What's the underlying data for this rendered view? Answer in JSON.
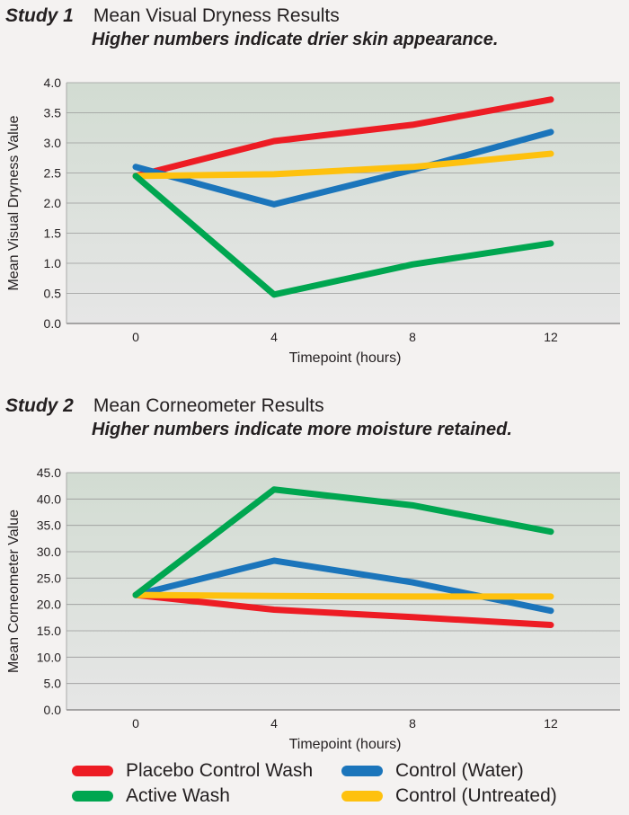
{
  "study1": {
    "label": "Study 1",
    "title": "Mean Visual Dryness Results",
    "subtitle": "Higher numbers indicate drier skin appearance."
  },
  "study2": {
    "label": "Study 2",
    "title": "Mean Corneometer Results",
    "subtitle": "Higher numbers indicate more moisture retained."
  },
  "colors": {
    "placebo": "#ed1c24",
    "active": "#00a650",
    "water": "#1b75bb",
    "untreated": "#fec10e",
    "plot_bg_top": "#d2dcd2",
    "plot_bg_bottom": "#e6e6e6"
  },
  "legend": [
    {
      "label": "Placebo Control Wash",
      "color_key": "placebo"
    },
    {
      "label": "Control (Water)",
      "color_key": "water"
    },
    {
      "label": "Active Wash",
      "color_key": "active"
    },
    {
      "label": "Control (Untreated)",
      "color_key": "untreated"
    }
  ],
  "chart_data": [
    {
      "type": "line",
      "title": "Mean Visual Dryness Results",
      "xlabel": "Timepoint (hours)",
      "ylabel": "Mean Visual Dryness Value",
      "x": [
        0,
        4,
        8,
        12
      ],
      "x_tick_labels": [
        "0",
        "4",
        "8",
        "12"
      ],
      "y_tick_labels": [
        "0.0",
        "0.5",
        "1.0",
        "1.5",
        "2.0",
        "2.5",
        "3.0",
        "3.5",
        "4.0"
      ],
      "ylim": [
        0,
        4
      ],
      "xlim": [
        -2,
        14
      ],
      "grid": true,
      "series": [
        {
          "name": "Placebo Control Wash",
          "color_key": "placebo",
          "values": [
            2.45,
            3.03,
            3.3,
            3.72
          ]
        },
        {
          "name": "Control (Water)",
          "color_key": "water",
          "values": [
            2.6,
            1.98,
            2.55,
            3.18
          ]
        },
        {
          "name": "Control (Untreated)",
          "color_key": "untreated",
          "values": [
            2.45,
            2.48,
            2.6,
            2.82
          ]
        },
        {
          "name": "Active Wash",
          "color_key": "active",
          "values": [
            2.45,
            0.48,
            0.98,
            1.33
          ]
        }
      ]
    },
    {
      "type": "line",
      "title": "Mean Corneometer Results",
      "xlabel": "Timepoint (hours)",
      "ylabel": "Mean Corneometer Value",
      "x": [
        0,
        4,
        8,
        12
      ],
      "x_tick_labels": [
        "0",
        "4",
        "8",
        "12"
      ],
      "y_tick_labels": [
        "0.0",
        "5.0",
        "10.0",
        "15.0",
        "20.0",
        "25.0",
        "30.0",
        "35.0",
        "40.0",
        "45.0"
      ],
      "ylim": [
        0,
        45
      ],
      "xlim": [
        -2,
        14
      ],
      "grid": true,
      "series": [
        {
          "name": "Placebo Control Wash",
          "color_key": "placebo",
          "values": [
            21.8,
            19.0,
            17.6,
            16.1
          ]
        },
        {
          "name": "Control (Water)",
          "color_key": "water",
          "values": [
            21.8,
            28.3,
            24.2,
            18.8
          ]
        },
        {
          "name": "Control (Untreated)",
          "color_key": "untreated",
          "values": [
            21.8,
            21.6,
            21.5,
            21.5
          ]
        },
        {
          "name": "Active Wash",
          "color_key": "active",
          "values": [
            21.8,
            41.8,
            38.8,
            33.8
          ]
        }
      ]
    }
  ]
}
